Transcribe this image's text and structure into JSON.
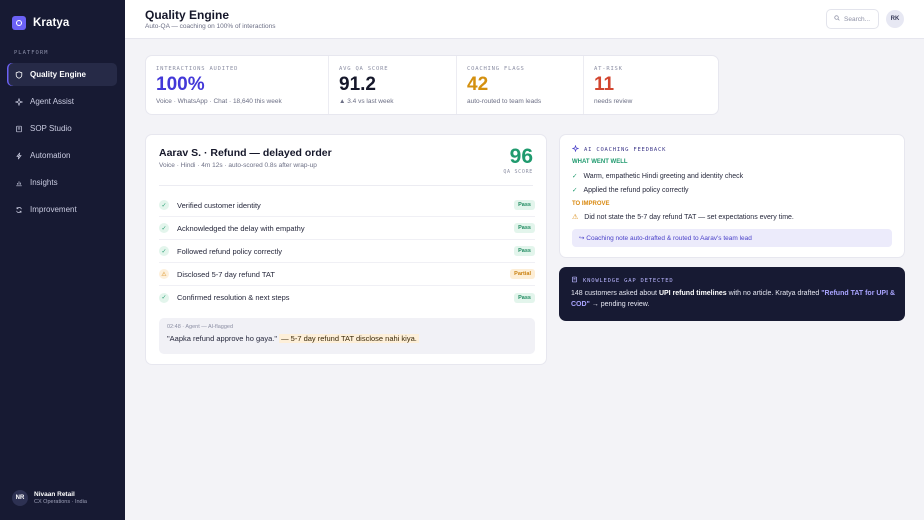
{
  "app": {
    "name": "Kratya"
  },
  "sidebar": {
    "section_label": "PLATFORM",
    "items": [
      {
        "label": "Quality Engine",
        "icon": "shield-icon",
        "active": true
      },
      {
        "label": "Agent Assist",
        "icon": "sparkle-icon",
        "active": false
      },
      {
        "label": "SOP Studio",
        "icon": "book-icon",
        "active": false
      },
      {
        "label": "Automation",
        "icon": "bolt-icon",
        "active": false
      },
      {
        "label": "Insights",
        "icon": "chart-icon",
        "active": false
      },
      {
        "label": "Improvement",
        "icon": "cycle-icon",
        "active": false
      }
    ],
    "user": {
      "initials": "NR",
      "name": "Nivaan Retail",
      "sub": "CX Operations · India"
    }
  },
  "header": {
    "title": "Quality Engine",
    "subtitle": "Auto-QA — coaching on 100% of interactions",
    "search_placeholder": "Search...",
    "avatar_initials": "RK"
  },
  "stats": [
    {
      "label": "INTERACTIONS AUDITED",
      "value": "100%",
      "sub": "Voice · WhatsApp · Chat · 18,640 this week",
      "color": "#4338d8"
    },
    {
      "label": "AVG QA SCORE",
      "value": "91.2",
      "sub": "▲ 3.4 vs last week",
      "color": "#15172a"
    },
    {
      "label": "COACHING FLAGS",
      "value": "42",
      "sub": "auto-routed to team leads",
      "color": "#d4900f"
    },
    {
      "label": "AT-RISK",
      "value": "11",
      "sub": "needs review",
      "color": "#d2452f"
    }
  ],
  "interaction": {
    "title": "Aarav S. · Refund — delayed order",
    "meta": "Voice · Hindi · 4m 12s · auto-scored 0.8s after wrap-up",
    "score": "96",
    "score_label": "QA SCORE",
    "checks": [
      {
        "label": "Verified customer identity",
        "status": "Pass"
      },
      {
        "label": "Acknowledged the delay with empathy",
        "status": "Pass"
      },
      {
        "label": "Followed refund policy correctly",
        "status": "Pass"
      },
      {
        "label": "Disclosed 5-7 day refund TAT",
        "status": "Partial"
      },
      {
        "label": "Confirmed resolution & next steps",
        "status": "Pass"
      }
    ],
    "transcript": {
      "meta": "02:48 · Agent — AI-flagged",
      "quote": "\"Aapka refund approve ho gaya.\"",
      "flag": "— 5-7 day refund TAT disclose nahi kiya."
    }
  },
  "coaching": {
    "header": "AI COACHING FEEDBACK",
    "went_well_label": "WHAT WENT WELL",
    "went_well": [
      "Warm, empathetic Hindi greeting and identity check",
      "Applied the refund policy correctly"
    ],
    "improve_label": "TO IMPROVE",
    "improve": [
      "Did not state the 5-7 day refund TAT — set expectations every time."
    ],
    "note": "↪ Coaching note auto-drafted & routed to Aarav's team lead"
  },
  "knowledge_gap": {
    "header": "KNOWLEDGE GAP DETECTED",
    "text_1": "148 customers asked about",
    "text_bold": "UPI refund timelines",
    "text_2": "with no article. Kratya drafted",
    "link": "\"Refund TAT for UPI & COD\"",
    "text_3": "→ pending review."
  }
}
